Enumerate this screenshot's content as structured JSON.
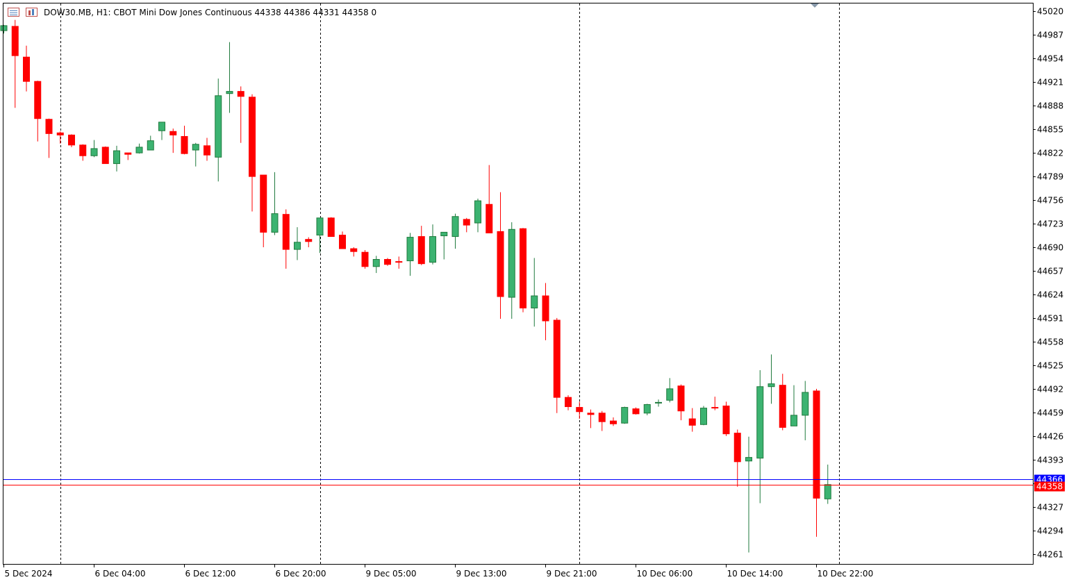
{
  "header": {
    "symbol": "DOW30.MB",
    "timeframe": "H1",
    "description": "CBOT Mini Dow Jones Continuous",
    "ohlc": "44338 44386 44331 44358",
    "spread": "0",
    "title_text": "DOW30.MB, H1:  CBOT Mini Dow Jones Continuous  44338 44386 44331 44358  0",
    "icons": [
      "symbol-list-icon",
      "chart-properties-icon"
    ]
  },
  "colors": {
    "bull": "#3cb371",
    "bear": "#ff0000",
    "doji": "#00cc00",
    "bid_line": "#ff0000",
    "ask_line": "#0000ff",
    "grid": "#000000",
    "background": "#ffffff"
  },
  "price_tags": {
    "ask": "44366",
    "bid": "44358"
  },
  "chart_data": {
    "type": "candlestick",
    "timeframe": "H1",
    "y_ticks": [
      "45020",
      "44987",
      "44954",
      "44921",
      "44888",
      "44855",
      "44822",
      "44789",
      "44756",
      "44723",
      "44690",
      "44657",
      "44624",
      "44591",
      "44558",
      "44525",
      "44492",
      "44459",
      "44426",
      "44393",
      "44360",
      "44327",
      "44294",
      "44261"
    ],
    "x_ticks": [
      "5 Dec 2024",
      "6 Dec 04:00",
      "6 Dec 12:00",
      "6 Dec 20:00",
      "9 Dec 05:00",
      "9 Dec 13:00",
      "9 Dec 21:00",
      "10 Dec 06:00",
      "10 Dec 14:00",
      "10 Dec 22:00"
    ],
    "ylim": [
      44247,
      45031
    ],
    "period_separators": "daily",
    "grid": false,
    "bid": 44358,
    "ask": 44366,
    "candles": [
      {
        "o": 44993,
        "h": 45001,
        "l": 44989,
        "c": 45000
      },
      {
        "o": 44999,
        "h": 45008,
        "l": 44885,
        "c": 44958
      },
      {
        "o": 44956,
        "h": 44972,
        "l": 44908,
        "c": 44922
      },
      {
        "o": 44922,
        "h": 44923,
        "l": 44838,
        "c": 44870
      },
      {
        "o": 44869,
        "h": 44870,
        "l": 44815,
        "c": 44849
      },
      {
        "o": 44850,
        "h": 44852,
        "l": 44835,
        "c": 44847
      },
      {
        "o": 44847,
        "h": 44848,
        "l": 44830,
        "c": 44833
      },
      {
        "o": 44833,
        "h": 44834,
        "l": 44811,
        "c": 44818
      },
      {
        "o": 44818,
        "h": 44840,
        "l": 44816,
        "c": 44828
      },
      {
        "o": 44830,
        "h": 44831,
        "l": 44807,
        "c": 44807
      },
      {
        "o": 44807,
        "h": 44832,
        "l": 44796,
        "c": 44825
      },
      {
        "o": 44822,
        "h": 44822,
        "l": 44812,
        "c": 44820
      },
      {
        "o": 44822,
        "h": 44835,
        "l": 44821,
        "c": 44830
      },
      {
        "o": 44826,
        "h": 44846,
        "l": 44826,
        "c": 44839
      },
      {
        "o": 44853,
        "h": 44865,
        "l": 44840,
        "c": 44865
      },
      {
        "o": 44852,
        "h": 44856,
        "l": 44822,
        "c": 44847
      },
      {
        "o": 44845,
        "h": 44860,
        "l": 44820,
        "c": 44821
      },
      {
        "o": 44826,
        "h": 44836,
        "l": 44803,
        "c": 44834
      },
      {
        "o": 44832,
        "h": 44843,
        "l": 44811,
        "c": 44819
      },
      {
        "o": 44816,
        "h": 44926,
        "l": 44782,
        "c": 44902
      },
      {
        "o": 44905,
        "h": 44977,
        "l": 44878,
        "c": 44908
      },
      {
        "o": 44908,
        "h": 44915,
        "l": 44836,
        "c": 44901
      },
      {
        "o": 44900,
        "h": 44904,
        "l": 44740,
        "c": 44789
      },
      {
        "o": 44791,
        "h": 44791,
        "l": 44690,
        "c": 44711
      },
      {
        "o": 44711,
        "h": 44795,
        "l": 44707,
        "c": 44737
      },
      {
        "o": 44736,
        "h": 44743,
        "l": 44660,
        "c": 44687
      },
      {
        "o": 44687,
        "h": 44718,
        "l": 44672,
        "c": 44697
      },
      {
        "o": 44701,
        "h": 44704,
        "l": 44690,
        "c": 44698
      },
      {
        "o": 44707,
        "h": 44729,
        "l": 44682,
        "c": 44731
      },
      {
        "o": 44731,
        "h": 44732,
        "l": 44705,
        "c": 44705
      },
      {
        "o": 44707,
        "h": 44712,
        "l": 44688,
        "c": 44688
      },
      {
        "o": 44688,
        "h": 44690,
        "l": 44677,
        "c": 44684
      },
      {
        "o": 44683,
        "h": 44686,
        "l": 44660,
        "c": 44663
      },
      {
        "o": 44663,
        "h": 44678,
        "l": 44654,
        "c": 44673
      },
      {
        "o": 44673,
        "h": 44675,
        "l": 44664,
        "c": 44666
      },
      {
        "o": 44670,
        "h": 44677,
        "l": 44660,
        "c": 44669
      },
      {
        "o": 44671,
        "h": 44710,
        "l": 44650,
        "c": 44704
      },
      {
        "o": 44705,
        "h": 44720,
        "l": 44665,
        "c": 44667
      },
      {
        "o": 44669,
        "h": 44722,
        "l": 44666,
        "c": 44705
      },
      {
        "o": 44706,
        "h": 44708,
        "l": 44673,
        "c": 44711
      },
      {
        "o": 44705,
        "h": 44737,
        "l": 44688,
        "c": 44733
      },
      {
        "o": 44729,
        "h": 44731,
        "l": 44711,
        "c": 44721
      },
      {
        "o": 44724,
        "h": 44758,
        "l": 44711,
        "c": 44755
      },
      {
        "o": 44750,
        "h": 44805,
        "l": 44714,
        "c": 44710
      },
      {
        "o": 44712,
        "h": 44767,
        "l": 44590,
        "c": 44621
      },
      {
        "o": 44620,
        "h": 44725,
        "l": 44590,
        "c": 44715
      },
      {
        "o": 44716,
        "h": 44717,
        "l": 44599,
        "c": 44605
      },
      {
        "o": 44605,
        "h": 44675,
        "l": 44579,
        "c": 44622
      },
      {
        "o": 44622,
        "h": 44640,
        "l": 44560,
        "c": 44587
      },
      {
        "o": 44588,
        "h": 44591,
        "l": 44458,
        "c": 44480
      },
      {
        "o": 44480,
        "h": 44483,
        "l": 44462,
        "c": 44467
      },
      {
        "o": 44466,
        "h": 44474,
        "l": 44450,
        "c": 44460
      },
      {
        "o": 44458,
        "h": 44463,
        "l": 44437,
        "c": 44456
      },
      {
        "o": 44458,
        "h": 44461,
        "l": 44433,
        "c": 44446
      },
      {
        "o": 44447,
        "h": 44452,
        "l": 44440,
        "c": 44443
      },
      {
        "o": 44444,
        "h": 44467,
        "l": 44443,
        "c": 44466
      },
      {
        "o": 44464,
        "h": 44466,
        "l": 44456,
        "c": 44457
      },
      {
        "o": 44458,
        "h": 44471,
        "l": 44455,
        "c": 44470
      },
      {
        "o": 44472,
        "h": 44477,
        "l": 44467,
        "c": 44473
      },
      {
        "o": 44476,
        "h": 44507,
        "l": 44473,
        "c": 44492
      },
      {
        "o": 44496,
        "h": 44498,
        "l": 44448,
        "c": 44461
      },
      {
        "o": 44450,
        "h": 44465,
        "l": 44432,
        "c": 44441
      },
      {
        "o": 44442,
        "h": 44468,
        "l": 44441,
        "c": 44465
      },
      {
        "o": 44466,
        "h": 44481,
        "l": 44462,
        "c": 44465
      },
      {
        "o": 44468,
        "h": 44474,
        "l": 44426,
        "c": 44429
      },
      {
        "o": 44430,
        "h": 44435,
        "l": 44355,
        "c": 44390
      },
      {
        "o": 44391,
        "h": 44425,
        "l": 44263,
        "c": 44396
      },
      {
        "o": 44395,
        "h": 44518,
        "l": 44332,
        "c": 44495
      },
      {
        "o": 44495,
        "h": 44540,
        "l": 44471,
        "c": 44499
      },
      {
        "o": 44497,
        "h": 44513,
        "l": 44434,
        "c": 44438
      },
      {
        "o": 44440,
        "h": 44497,
        "l": 44440,
        "c": 44455
      },
      {
        "o": 44455,
        "h": 44503,
        "l": 44420,
        "c": 44487
      },
      {
        "o": 44489,
        "h": 44492,
        "l": 44285,
        "c": 44339
      },
      {
        "o": 44338,
        "h": 44386,
        "l": 44331,
        "c": 44358
      }
    ]
  }
}
